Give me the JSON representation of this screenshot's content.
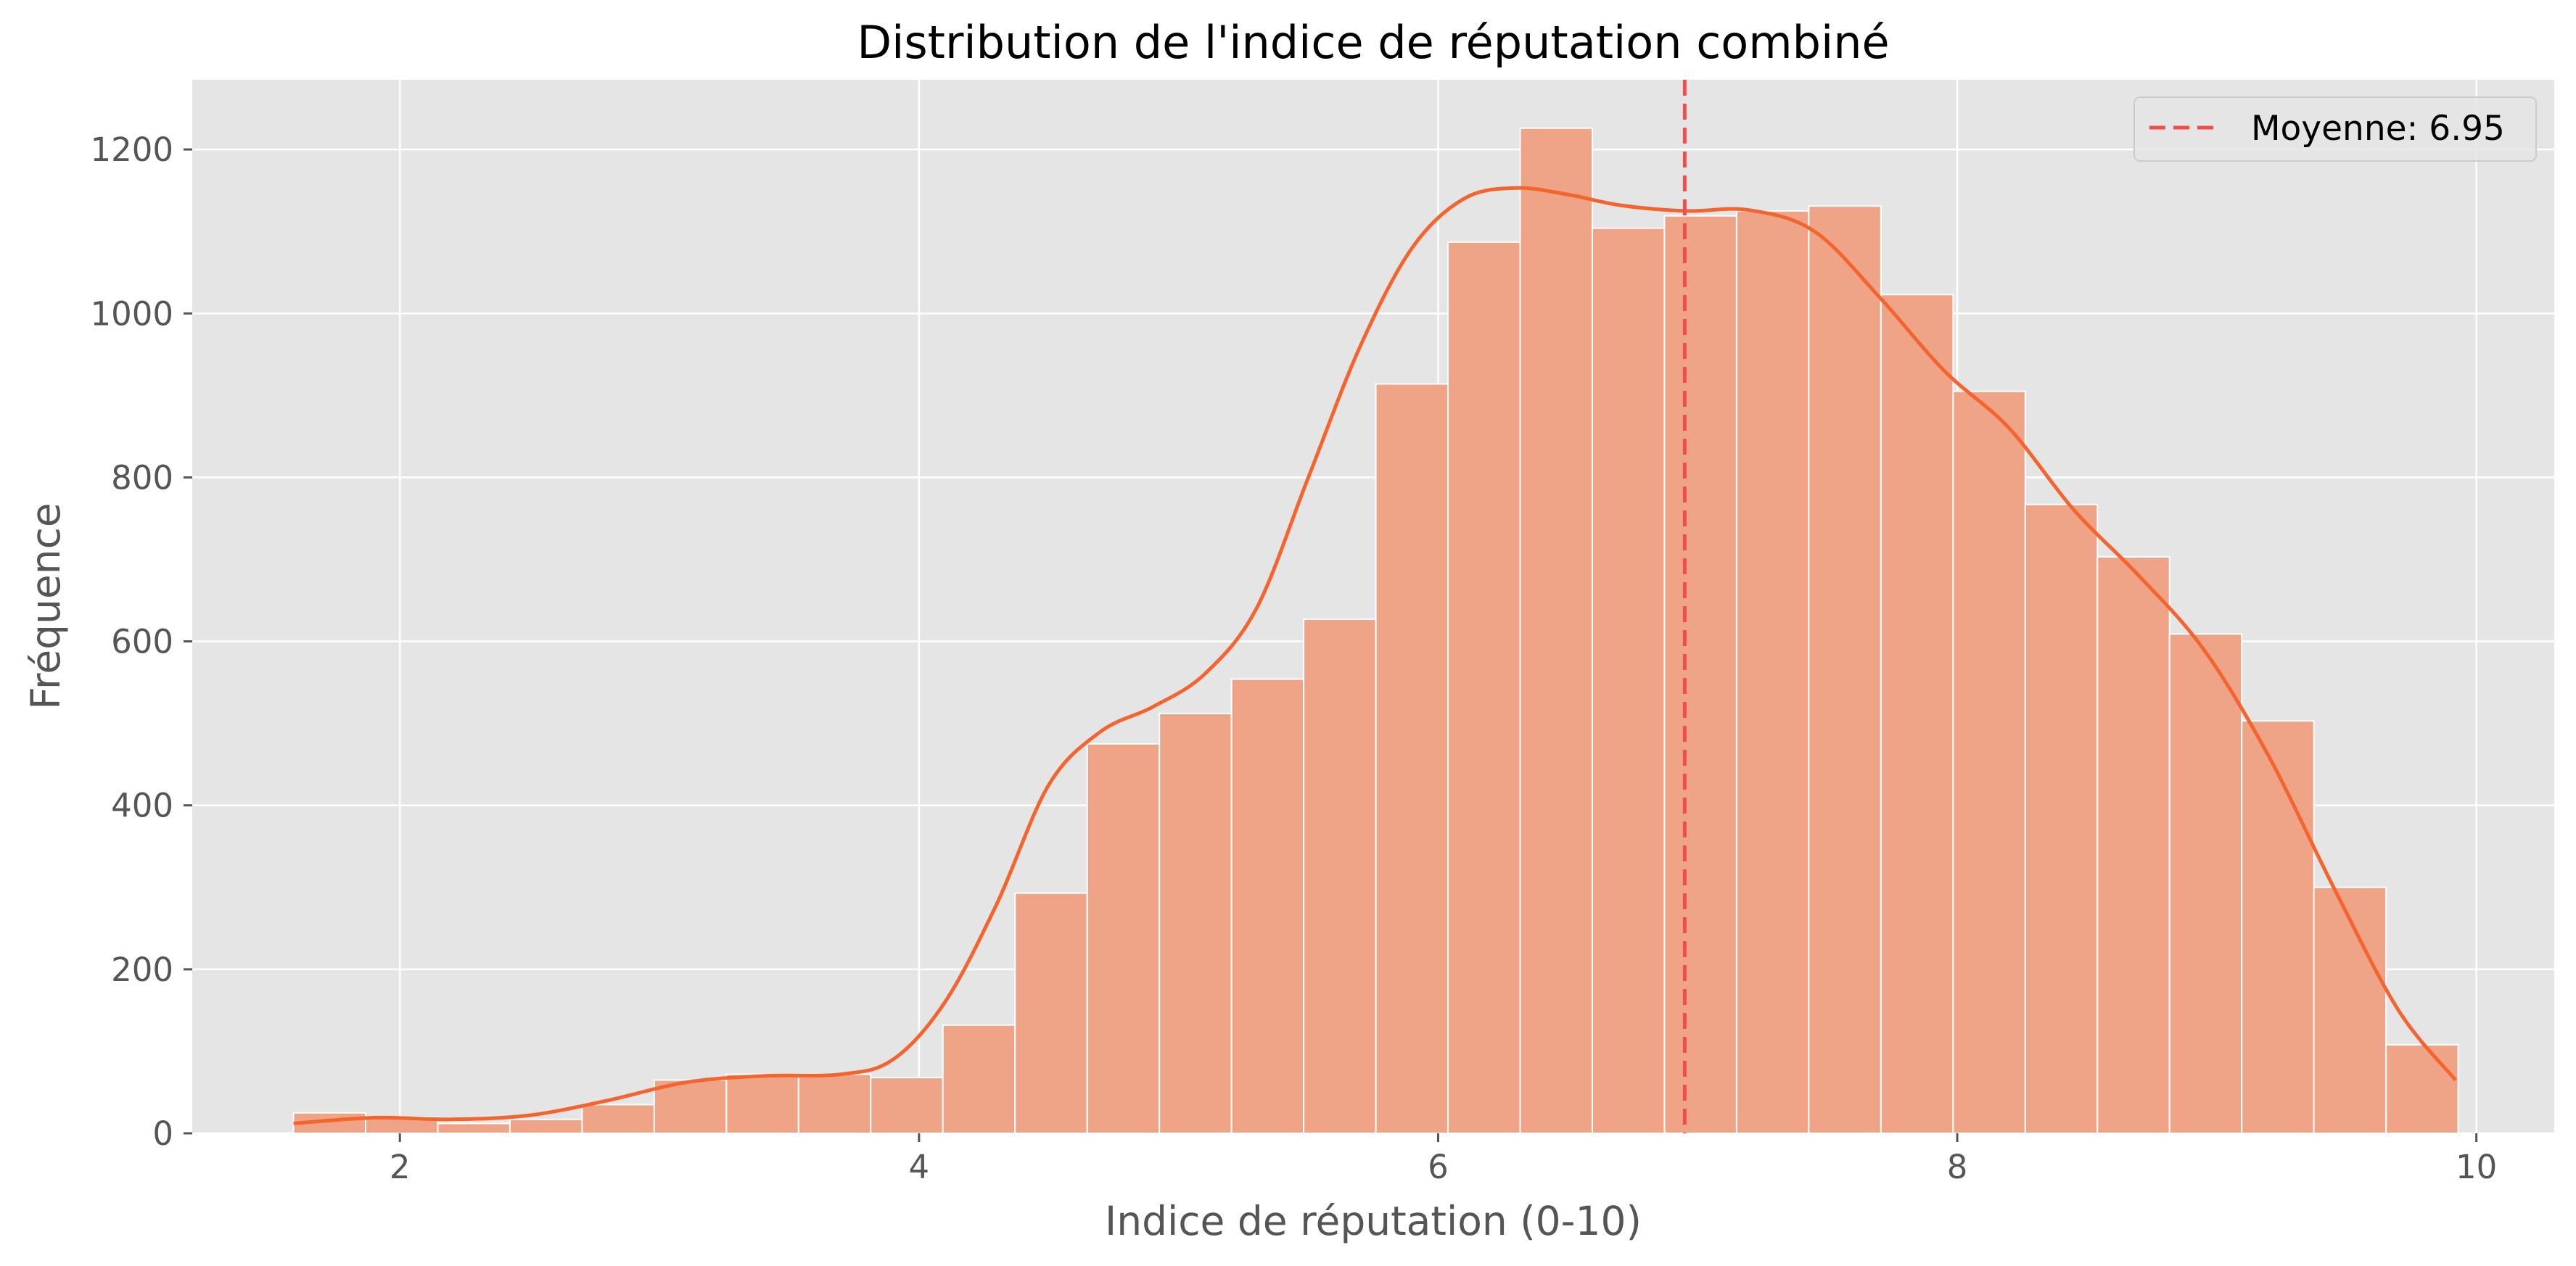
{
  "colors": {
    "figure_bg": "#ffffff",
    "axes_bg": "#e5e5e5",
    "grid": "#ffffff",
    "bar_fill": "#f0a487",
    "bar_edge": "#ffffff",
    "kde_line": "#f4642f",
    "mean_line": "#f44b4b",
    "tick_text": "#555555"
  },
  "chart_data": {
    "type": "bar",
    "title": "Distribution de l'indice de réputation combiné",
    "xlabel": "Indice de réputation (0-10)",
    "ylabel": "Fréquence",
    "xlim": [
      1.2,
      10.3
    ],
    "ylim": [
      0,
      1285
    ],
    "xticks": [
      2,
      4,
      6,
      8,
      10
    ],
    "yticks": [
      0,
      200,
      400,
      600,
      800,
      1000,
      1200
    ],
    "grid": true,
    "legend_position": "top-right",
    "bin_width": 0.278,
    "bin_starts": [
      1.59,
      1.868,
      2.146,
      2.424,
      2.702,
      2.98,
      3.258,
      3.536,
      3.814,
      4.092,
      4.37,
      4.648,
      4.926,
      5.204,
      5.482,
      5.76,
      6.038,
      6.316,
      6.594,
      6.872,
      7.15,
      7.428,
      7.706,
      7.984,
      8.262,
      8.54,
      8.818,
      9.096,
      9.374,
      9.652
    ],
    "counts": [
      25,
      20,
      12,
      17,
      35,
      65,
      72,
      72,
      68,
      132,
      293,
      475,
      512,
      554,
      627,
      914,
      1087,
      1226,
      1104,
      1119,
      1125,
      1131,
      1023,
      905,
      767,
      703,
      609,
      503,
      300,
      108
    ],
    "kde": {
      "x": [
        1.59,
        1.9,
        2.2,
        2.5,
        2.8,
        3.1,
        3.4,
        3.7,
        3.9,
        4.1,
        4.3,
        4.5,
        4.7,
        4.9,
        5.1,
        5.3,
        5.5,
        5.7,
        5.9,
        6.1,
        6.3,
        6.5,
        6.7,
        6.95,
        7.2,
        7.45,
        7.7,
        7.95,
        8.2,
        8.45,
        8.7,
        8.95,
        9.2,
        9.45,
        9.7,
        9.92
      ],
      "y": [
        12,
        19,
        17,
        22,
        40,
        62,
        70,
        72,
        90,
        160,
        280,
        425,
        490,
        520,
        560,
        640,
        800,
        960,
        1080,
        1140,
        1153,
        1145,
        1132,
        1125,
        1126,
        1100,
        1020,
        930,
        860,
        760,
        680,
        590,
        460,
        300,
        150,
        65
      ]
    },
    "mean_line": {
      "x": 6.95,
      "label": "Moyenne: 6.95"
    },
    "legend": [
      {
        "label": "Moyenne: 6.95",
        "style": "dashed-line"
      }
    ]
  }
}
